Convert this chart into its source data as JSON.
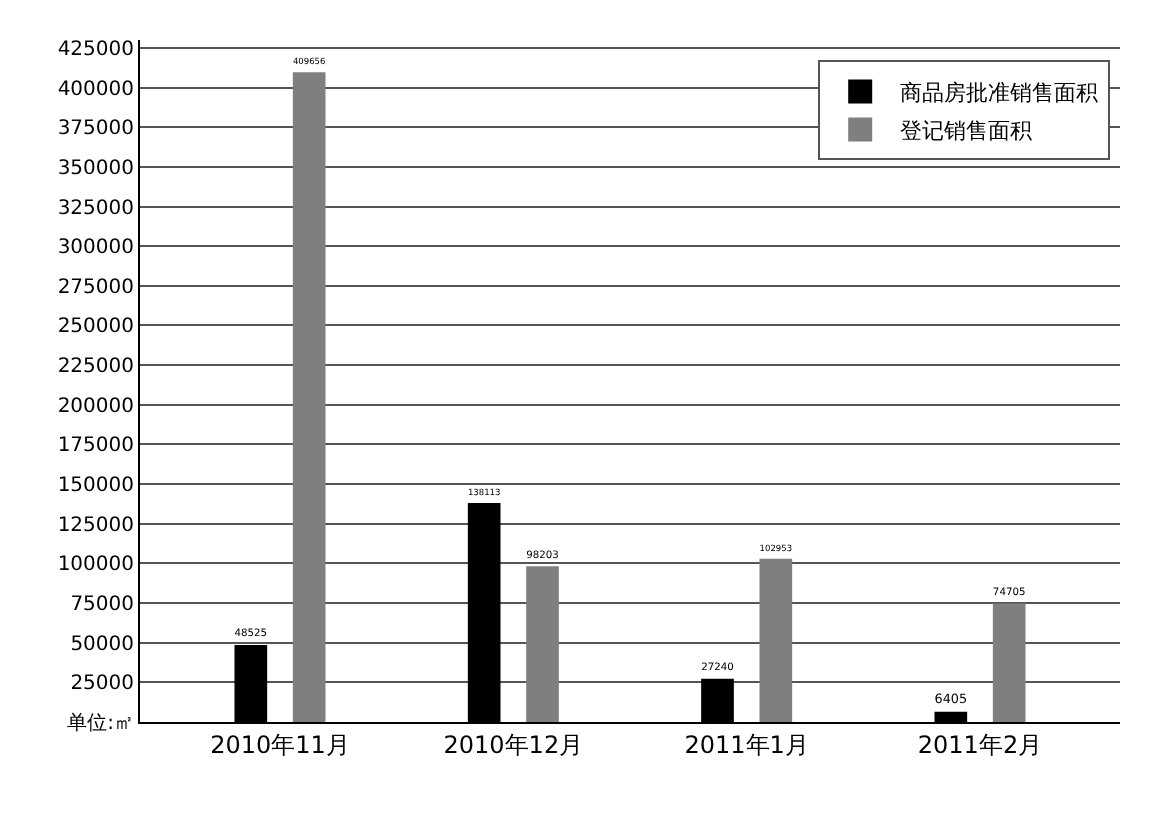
{
  "chart_data": {
    "type": "bar",
    "categories": [
      "2010年11月",
      "2010年12月",
      "2011年1月",
      "2011年2月"
    ],
    "series": [
      {
        "name": "商品房批准销售面积",
        "color": "#000000",
        "values": [
          48525,
          138113,
          27240,
          6405
        ]
      },
      {
        "name": "登记销售面积",
        "color": "#7f7f7f",
        "values": [
          409656,
          98203,
          102953,
          74705
        ]
      }
    ],
    "ylim": [
      0,
      430000
    ],
    "yticks": [
      {
        "value": 0,
        "label": "单位:㎡"
      },
      25000,
      50000,
      75000,
      100000,
      125000,
      150000,
      175000,
      200000,
      225000,
      250000,
      275000,
      300000,
      325000,
      350000,
      375000,
      400000,
      425000
    ],
    "grid": "y",
    "legend": "top right",
    "data_labels": true
  }
}
